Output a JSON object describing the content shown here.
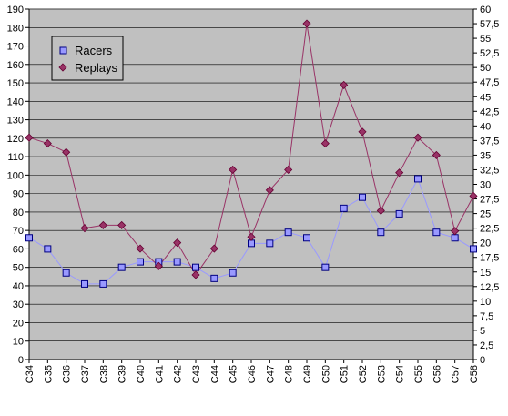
{
  "chart_data": {
    "type": "line",
    "categories": [
      "C34",
      "C35",
      "C36",
      "C37",
      "C38",
      "C39",
      "C40",
      "C41",
      "C42",
      "C43",
      "C44",
      "C45",
      "C46",
      "C47",
      "C48",
      "C49",
      "C50",
      "C51",
      "C52",
      "C53",
      "C54",
      "C55",
      "C56",
      "C57",
      "C58"
    ],
    "series": [
      {
        "name": "Racers",
        "axis": "left",
        "color": "#9999ff",
        "marker": "square",
        "marker_fill": "#9999ff",
        "values": [
          66,
          60,
          47,
          41,
          41,
          50,
          53,
          53,
          53,
          50,
          44,
          47,
          63,
          63,
          69,
          66,
          50,
          82,
          88,
          69,
          79,
          98,
          69,
          66,
          60
        ]
      },
      {
        "name": "Replays",
        "axis": "right",
        "color": "#993366",
        "marker": "diamond",
        "marker_fill": "#993366",
        "values": [
          38,
          37,
          35.5,
          22.5,
          23,
          23,
          19,
          16,
          20,
          14.5,
          19,
          32.5,
          21,
          29,
          32.5,
          57.5,
          37,
          47,
          39,
          25.5,
          32,
          38,
          35,
          22,
          28
        ]
      }
    ],
    "y_left": {
      "min": 0,
      "max": 190,
      "step": 10,
      "ticks": [
        "0",
        "10",
        "20",
        "30",
        "40",
        "50",
        "60",
        "70",
        "80",
        "90",
        "100",
        "110",
        "120",
        "130",
        "140",
        "150",
        "160",
        "170",
        "180",
        "190"
      ]
    },
    "y_right": {
      "min": 0,
      "max": 60,
      "step": 2.5,
      "ticks": [
        "0",
        "2,5",
        "5",
        "7,5",
        "10",
        "12,5",
        "15",
        "17,5",
        "20",
        "22,5",
        "25",
        "27,5",
        "30",
        "32,5",
        "35",
        "37,5",
        "40",
        "42,5",
        "45",
        "47,5",
        "50",
        "52,5",
        "55",
        "57,5",
        "60"
      ]
    },
    "legend": {
      "position": "top-left",
      "entries": [
        "Racers",
        "Replays"
      ]
    },
    "grid": "horizontal",
    "plot_background": "#c0c0c0",
    "title": "",
    "xlabel": "",
    "ylabel": ""
  }
}
